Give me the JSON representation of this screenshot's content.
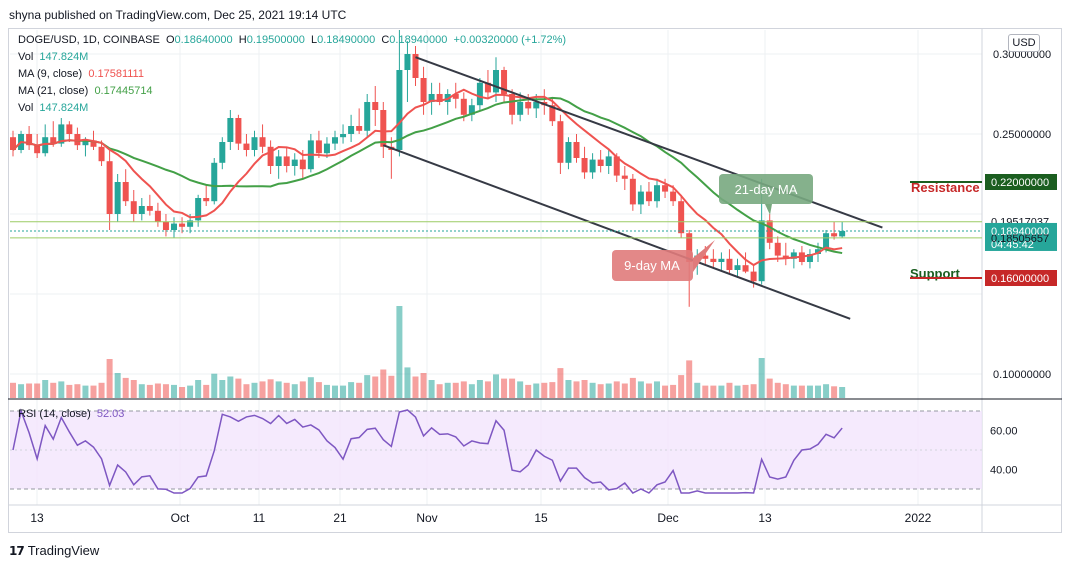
{
  "header": {
    "published": "shyna published on TradingView.com, Dec 25, 2021 19:14 UTC"
  },
  "legend": {
    "symbol": "DOGE/USD, 1D, COINBASE",
    "o_label": "O",
    "o": "0.18640000",
    "h_label": "H",
    "h": "0.19500000",
    "l_label": "L",
    "l": "0.18490000",
    "c_label": "C",
    "c": "0.18940000",
    "change": "+0.00320000 (+1.72%)",
    "vol_label": "Vol",
    "vol": "147.824M",
    "ma9_label": "MA (9, close)",
    "ma9": "0.17581111",
    "ma21_label": "MA (21, close)",
    "ma21": "0.17445714",
    "vol2_label": "Vol",
    "vol2": "147.824M"
  },
  "currency_button": "USD",
  "rsi": {
    "label": "RSI (14, close)",
    "value": "52.03"
  },
  "footer": {
    "brand": "TradingView",
    "logo": "17"
  },
  "colors": {
    "up": "#26a69a",
    "down": "#ef5350",
    "ma9": "#ef5350",
    "ma21": "#43a047",
    "rsi": "#7e57c2",
    "channel": "#363a45"
  },
  "chart_data": {
    "type": "candlestick",
    "symbol": "DOGE/USD",
    "timeframe": "1D",
    "price_axis_ticks": [
      "0.30000000",
      "0.25000000",
      "0.10000000"
    ],
    "x_tick_labels": [
      "13",
      "Oct",
      "11",
      "21",
      "Nov",
      "15",
      "Dec",
      "13",
      "2022"
    ],
    "ylim": [
      0.085,
      0.315
    ],
    "price_labels": [
      {
        "text": "0.22000000",
        "value": 0.22,
        "color": "#1b5e20"
      },
      {
        "text": "0.19517037",
        "value": 0.19517037,
        "color": "none"
      },
      {
        "text": "0.18940000",
        "value": 0.1894,
        "color": "#26a69a",
        "sub": "04:45:42"
      },
      {
        "text": "0.18505657",
        "value": 0.18505657,
        "color": "none"
      },
      {
        "text": "0.16000000",
        "value": 0.16,
        "color": "#c62828"
      }
    ],
    "annotations": [
      {
        "text": "21-day MA"
      },
      {
        "text": "9-day MA"
      },
      {
        "text": "Resistance"
      },
      {
        "text": "Support"
      }
    ],
    "candles": [
      [
        0.248,
        0.252,
        0.236,
        0.24
      ],
      [
        0.24,
        0.252,
        0.238,
        0.25
      ],
      [
        0.25,
        0.255,
        0.24,
        0.243
      ],
      [
        0.243,
        0.25,
        0.235,
        0.238
      ],
      [
        0.238,
        0.256,
        0.236,
        0.248
      ],
      [
        0.248,
        0.258,
        0.242,
        0.244
      ],
      [
        0.244,
        0.26,
        0.242,
        0.256
      ],
      [
        0.256,
        0.258,
        0.245,
        0.25
      ],
      [
        0.25,
        0.254,
        0.24,
        0.243
      ],
      [
        0.243,
        0.248,
        0.236,
        0.246
      ],
      [
        0.246,
        0.252,
        0.24,
        0.242
      ],
      [
        0.242,
        0.246,
        0.23,
        0.233
      ],
      [
        0.233,
        0.24,
        0.19,
        0.2
      ],
      [
        0.2,
        0.225,
        0.195,
        0.22
      ],
      [
        0.22,
        0.228,
        0.205,
        0.208
      ],
      [
        0.208,
        0.215,
        0.195,
        0.2
      ],
      [
        0.2,
        0.21,
        0.196,
        0.205
      ],
      [
        0.205,
        0.212,
        0.199,
        0.202
      ],
      [
        0.202,
        0.207,
        0.192,
        0.195
      ],
      [
        0.195,
        0.2,
        0.186,
        0.19
      ],
      [
        0.19,
        0.198,
        0.185,
        0.194
      ],
      [
        0.194,
        0.198,
        0.188,
        0.192
      ],
      [
        0.192,
        0.2,
        0.188,
        0.196
      ],
      [
        0.196,
        0.212,
        0.192,
        0.21
      ],
      [
        0.21,
        0.218,
        0.205,
        0.208
      ],
      [
        0.208,
        0.235,
        0.206,
        0.232
      ],
      [
        0.232,
        0.248,
        0.228,
        0.245
      ],
      [
        0.245,
        0.265,
        0.24,
        0.26
      ],
      [
        0.26,
        0.262,
        0.24,
        0.244
      ],
      [
        0.244,
        0.25,
        0.236,
        0.24
      ],
      [
        0.24,
        0.252,
        0.236,
        0.248
      ],
      [
        0.248,
        0.256,
        0.238,
        0.242
      ],
      [
        0.242,
        0.246,
        0.225,
        0.23
      ],
      [
        0.23,
        0.24,
        0.222,
        0.236
      ],
      [
        0.236,
        0.242,
        0.226,
        0.23
      ],
      [
        0.23,
        0.238,
        0.224,
        0.234
      ],
      [
        0.234,
        0.24,
        0.222,
        0.228
      ],
      [
        0.228,
        0.25,
        0.226,
        0.246
      ],
      [
        0.246,
        0.252,
        0.235,
        0.238
      ],
      [
        0.238,
        0.248,
        0.235,
        0.244
      ],
      [
        0.244,
        0.252,
        0.24,
        0.248
      ],
      [
        0.248,
        0.256,
        0.244,
        0.25
      ],
      [
        0.25,
        0.262,
        0.245,
        0.255
      ],
      [
        0.255,
        0.266,
        0.25,
        0.252
      ],
      [
        0.252,
        0.275,
        0.248,
        0.27
      ],
      [
        0.27,
        0.28,
        0.255,
        0.265
      ],
      [
        0.265,
        0.27,
        0.235,
        0.242
      ],
      [
        0.242,
        0.248,
        0.222,
        0.24
      ],
      [
        0.24,
        0.315,
        0.236,
        0.29
      ],
      [
        0.29,
        0.308,
        0.27,
        0.3
      ],
      [
        0.3,
        0.305,
        0.28,
        0.285
      ],
      [
        0.285,
        0.292,
        0.262,
        0.27
      ],
      [
        0.27,
        0.282,
        0.262,
        0.275
      ],
      [
        0.275,
        0.282,
        0.268,
        0.27
      ],
      [
        0.27,
        0.278,
        0.262,
        0.275
      ],
      [
        0.275,
        0.282,
        0.266,
        0.272
      ],
      [
        0.272,
        0.276,
        0.258,
        0.262
      ],
      [
        0.262,
        0.272,
        0.258,
        0.268
      ],
      [
        0.268,
        0.285,
        0.265,
        0.282
      ],
      [
        0.282,
        0.29,
        0.272,
        0.276
      ],
      [
        0.276,
        0.298,
        0.27,
        0.29
      ],
      [
        0.29,
        0.292,
        0.27,
        0.275
      ],
      [
        0.275,
        0.278,
        0.256,
        0.262
      ],
      [
        0.262,
        0.276,
        0.258,
        0.27
      ],
      [
        0.27,
        0.275,
        0.262,
        0.266
      ],
      [
        0.266,
        0.275,
        0.26,
        0.27
      ],
      [
        0.27,
        0.278,
        0.262,
        0.268
      ],
      [
        0.268,
        0.272,
        0.255,
        0.258
      ],
      [
        0.258,
        0.262,
        0.225,
        0.232
      ],
      [
        0.232,
        0.248,
        0.228,
        0.245
      ],
      [
        0.245,
        0.25,
        0.232,
        0.235
      ],
      [
        0.235,
        0.242,
        0.222,
        0.226
      ],
      [
        0.226,
        0.238,
        0.222,
        0.234
      ],
      [
        0.234,
        0.24,
        0.226,
        0.23
      ],
      [
        0.23,
        0.24,
        0.225,
        0.236
      ],
      [
        0.236,
        0.238,
        0.22,
        0.224
      ],
      [
        0.224,
        0.23,
        0.215,
        0.222
      ],
      [
        0.222,
        0.225,
        0.202,
        0.206
      ],
      [
        0.206,
        0.218,
        0.2,
        0.214
      ],
      [
        0.214,
        0.22,
        0.205,
        0.208
      ],
      [
        0.208,
        0.222,
        0.204,
        0.218
      ],
      [
        0.218,
        0.222,
        0.21,
        0.214
      ],
      [
        0.214,
        0.218,
        0.205,
        0.208
      ],
      [
        0.208,
        0.212,
        0.185,
        0.188
      ],
      [
        0.188,
        0.19,
        0.142,
        0.17
      ],
      [
        0.17,
        0.178,
        0.162,
        0.174
      ],
      [
        0.174,
        0.18,
        0.168,
        0.172
      ],
      [
        0.172,
        0.178,
        0.166,
        0.17
      ],
      [
        0.17,
        0.176,
        0.164,
        0.172
      ],
      [
        0.172,
        0.178,
        0.162,
        0.165
      ],
      [
        0.165,
        0.172,
        0.16,
        0.168
      ],
      [
        0.168,
        0.176,
        0.163,
        0.164
      ],
      [
        0.164,
        0.168,
        0.154,
        0.158
      ],
      [
        0.158,
        0.222,
        0.156,
        0.196
      ],
      [
        0.196,
        0.2,
        0.178,
        0.182
      ],
      [
        0.182,
        0.186,
        0.17,
        0.174
      ],
      [
        0.174,
        0.182,
        0.168,
        0.172
      ],
      [
        0.172,
        0.178,
        0.166,
        0.176
      ],
      [
        0.176,
        0.18,
        0.168,
        0.17
      ],
      [
        0.17,
        0.178,
        0.166,
        0.175
      ],
      [
        0.175,
        0.182,
        0.17,
        0.178
      ],
      [
        0.178,
        0.19,
        0.176,
        0.188
      ],
      [
        0.188,
        0.195,
        0.184,
        0.186
      ],
      [
        0.186,
        0.195,
        0.185,
        0.1894
      ]
    ]
  }
}
